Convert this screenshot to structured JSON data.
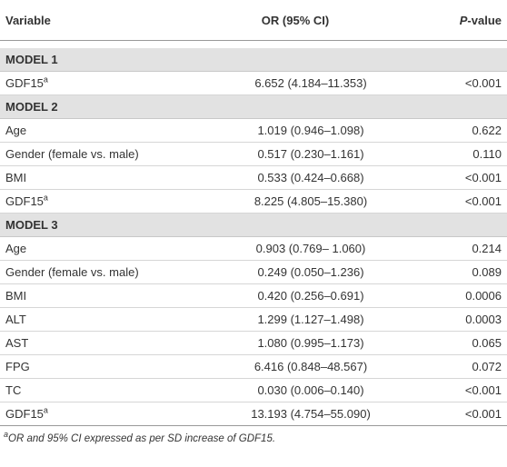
{
  "header": [
    "Variable",
    "OR (95% CI)",
    "P-value"
  ],
  "sections": [
    {
      "label": "MODEL 1",
      "rows": [
        {
          "variable": "GDF15",
          "sup": "a",
          "or": "6.652 (4.184–11.353)",
          "p": "<0.001"
        }
      ]
    },
    {
      "label": "MODEL 2",
      "rows": [
        {
          "variable": "Age",
          "or": "1.019 (0.946–1.098)",
          "p": "0.622"
        },
        {
          "variable": "Gender (female vs. male)",
          "or": "0.517 (0.230–1.161)",
          "p": "0.110"
        },
        {
          "variable": "BMI",
          "or": "0.533 (0.424–0.668)",
          "p": "<0.001"
        },
        {
          "variable": "GDF15",
          "sup": "a",
          "or": "8.225 (4.805–15.380)",
          "p": "<0.001"
        }
      ]
    },
    {
      "label": "MODEL 3",
      "rows": [
        {
          "variable": "Age",
          "or": "0.903 (0.769– 1.060)",
          "p": "0.214"
        },
        {
          "variable": "Gender (female vs. male)",
          "or": "0.249 (0.050–1.236)",
          "p": "0.089"
        },
        {
          "variable": "BMI",
          "or": "0.420 (0.256–0.691)",
          "p": "0.0006"
        },
        {
          "variable": "ALT",
          "or": "1.299 (1.127–1.498)",
          "p": "0.0003"
        },
        {
          "variable": "AST",
          "or": "1.080 (0.995–1.173)",
          "p": "0.065"
        },
        {
          "variable": "FPG",
          "or": "6.416 (0.848–48.567)",
          "p": "0.072"
        },
        {
          "variable": "TC",
          "or": "0.030 (0.006–0.140)",
          "p": "<0.001"
        },
        {
          "variable": "GDF15",
          "sup": "a",
          "or": "13.193 (4.754–55.090)",
          "p": "<0.001"
        }
      ]
    }
  ],
  "footnote": {
    "sup": "a",
    "text": "OR and 95% CI expressed as per SD increase of GDF15."
  }
}
